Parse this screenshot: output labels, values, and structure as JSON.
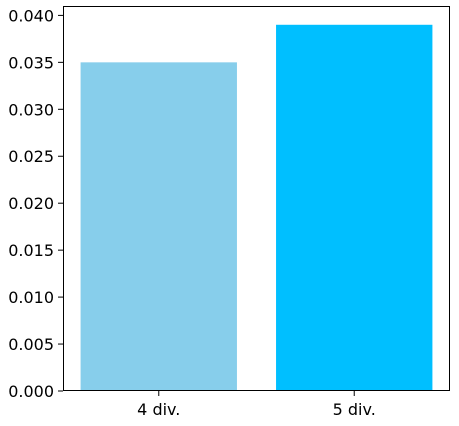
{
  "chart_data": {
    "type": "bar",
    "title": "",
    "xlabel": "",
    "ylabel": "",
    "categories": [
      "4 div.",
      "5 div."
    ],
    "values": [
      0.035,
      0.039
    ],
    "colors": [
      "#87ceeb",
      "#00bfff"
    ],
    "ylim": [
      0,
      0.041
    ],
    "yticks": [
      0.0,
      0.005,
      0.01,
      0.015,
      0.02,
      0.025,
      0.03,
      0.035,
      0.04
    ],
    "ytick_labels": [
      "0.000",
      "0.005",
      "0.010",
      "0.015",
      "0.020",
      "0.025",
      "0.030",
      "0.035",
      "0.040"
    ],
    "grid": false,
    "legend": "none"
  }
}
